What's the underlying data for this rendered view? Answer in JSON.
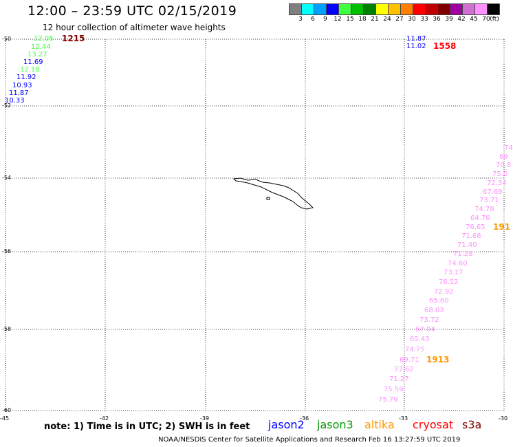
{
  "header": {
    "title": "12:00 – 23:59 UTC 02/15/2019",
    "subtitle": "12 hour collection of altimeter wave heights"
  },
  "legend": {
    "unit": "(ft)",
    "bins": [
      {
        "color": "#808080",
        "label": "3"
      },
      {
        "color": "#00ffff",
        "label": "6"
      },
      {
        "color": "#00a0ff",
        "label": "9"
      },
      {
        "color": "#0000ff",
        "label": "12"
      },
      {
        "color": "#40ff40",
        "label": "15"
      },
      {
        "color": "#00c000",
        "label": "18"
      },
      {
        "color": "#008000",
        "label": "21"
      },
      {
        "color": "#ffff00",
        "label": "24"
      },
      {
        "color": "#ffc000",
        "label": "27"
      },
      {
        "color": "#ff8000",
        "label": "30"
      },
      {
        "color": "#ff0000",
        "label": "33"
      },
      {
        "color": "#c00000",
        "label": "36"
      },
      {
        "color": "#800000",
        "label": "39"
      },
      {
        "color": "#a000a0",
        "label": "42"
      },
      {
        "color": "#d070d0",
        "label": "45"
      },
      {
        "color": "#ff90ff",
        "label": "70"
      },
      {
        "color": "#000000",
        "label": ""
      }
    ]
  },
  "axes": {
    "lat_labels": [
      "-50",
      "-52",
      "-54",
      "-56",
      "-58",
      "-60"
    ],
    "lon_labels": [
      "-45",
      "-42",
      "-39",
      "-36",
      "-33",
      "-30"
    ]
  },
  "observations": {
    "track_west": [
      {
        "value": "12.05",
        "color": "#40ff40"
      },
      {
        "value": "12.44",
        "color": "#40ff40"
      },
      {
        "value": "13.27",
        "color": "#40ff40"
      },
      {
        "value": "11.69",
        "color": "#0000ff"
      },
      {
        "value": "12.18",
        "color": "#40ff40"
      },
      {
        "value": "11.92",
        "color": "#0000ff"
      },
      {
        "value": "10.93",
        "color": "#0000ff"
      },
      {
        "value": "11.87",
        "color": "#0000ff"
      },
      {
        "value": "10.33",
        "color": "#0000ff"
      }
    ],
    "track_northeast": [
      {
        "value": "11.87",
        "color": "#0000ff"
      },
      {
        "value": "11.02",
        "color": "#0000ff"
      }
    ],
    "track_east": [
      {
        "value": "74",
        "color": "#ff90ff"
      },
      {
        "value": "69",
        "color": "#ff90ff"
      },
      {
        "value": "70.8",
        "color": "#ff90ff"
      },
      {
        "value": "75.0",
        "color": "#ff90ff"
      },
      {
        "value": "72.34",
        "color": "#ff90ff"
      },
      {
        "value": "67.69",
        "color": "#ff90ff"
      },
      {
        "value": "73.71",
        "color": "#ff90ff"
      },
      {
        "value": "74.78",
        "color": "#ff90ff"
      },
      {
        "value": "64.76",
        "color": "#ff90ff"
      },
      {
        "value": "76.65",
        "color": "#ff90ff"
      },
      {
        "value": "71.68",
        "color": "#ff90ff"
      },
      {
        "value": "71.40",
        "color": "#ff90ff"
      },
      {
        "value": "71.28",
        "color": "#ff90ff"
      },
      {
        "value": "74.60",
        "color": "#ff90ff"
      },
      {
        "value": "73.17",
        "color": "#ff90ff"
      },
      {
        "value": "76.52",
        "color": "#ff90ff"
      },
      {
        "value": "72.92",
        "color": "#ff90ff"
      },
      {
        "value": "65.60",
        "color": "#ff90ff"
      },
      {
        "value": "68.03",
        "color": "#ff90ff"
      },
      {
        "value": "73.72",
        "color": "#ff90ff"
      },
      {
        "value": "67.04",
        "color": "#ff90ff"
      },
      {
        "value": "65.43",
        "color": "#ff90ff"
      },
      {
        "value": "74.75",
        "color": "#ff90ff"
      },
      {
        "value": "69.71",
        "color": "#ff90ff"
      },
      {
        "value": "77.62",
        "color": "#ff90ff"
      },
      {
        "value": "71.27",
        "color": "#ff90ff"
      },
      {
        "value": "75.59",
        "color": "#ff90ff"
      },
      {
        "value": "75.79",
        "color": "#ff90ff"
      }
    ],
    "time_labels": [
      {
        "text": "1215",
        "color": "#800000"
      },
      {
        "text": "1558",
        "color": "#ff0000"
      },
      {
        "text": "191",
        "color": "#ff9900"
      },
      {
        "text": "1913",
        "color": "#ff9900"
      }
    ]
  },
  "footer": {
    "note": "note: 1) Time is in UTC; 2) SWH is in feet",
    "satellites": [
      {
        "name": "jason2",
        "color": "#0000ff"
      },
      {
        "name": "jason3",
        "color": "#009900"
      },
      {
        "name": "altika",
        "color": "#ff9900"
      },
      {
        "name": "cryosat",
        "color": "#ff0000"
      },
      {
        "name": "s3a",
        "color": "#800000"
      }
    ],
    "credit": "NOAA/NESDIS Center for Satellite Applications and Research    Feb 16 13:27:59 UTC 2019"
  }
}
